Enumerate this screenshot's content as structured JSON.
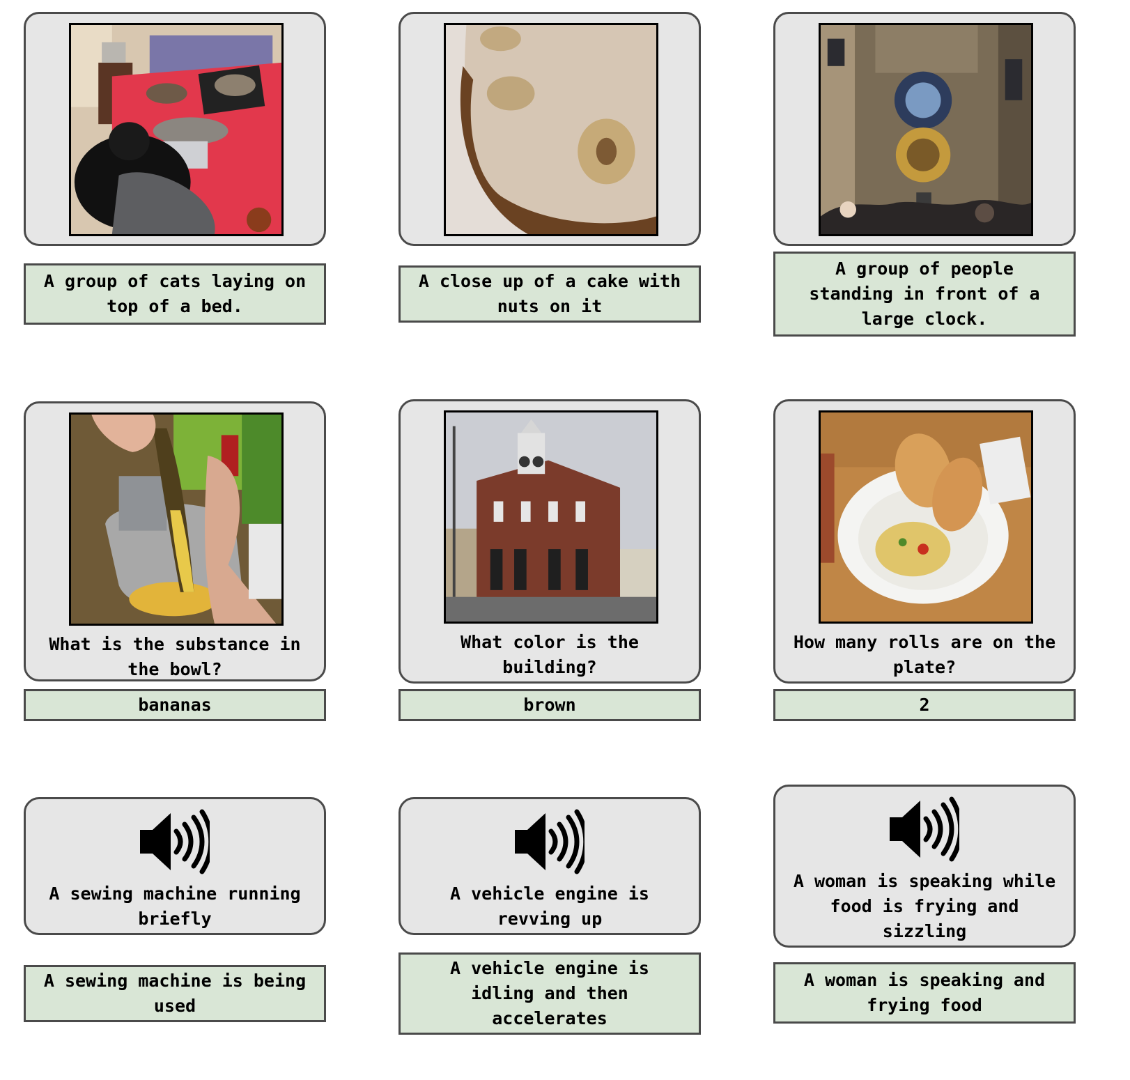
{
  "captioning": [
    {
      "image_icon": "cats-on-bed-photo",
      "caption": "A group of cats laying on\ntop of a bed."
    },
    {
      "image_icon": "walnut-cake-photo",
      "caption": "A close up of a cake with\nnuts on it"
    },
    {
      "image_icon": "astronomical-clock-photo",
      "caption": "A group of people\nstanding in front of a\nlarge clock."
    }
  ],
  "vqa": [
    {
      "image_icon": "banana-peeling-photo",
      "question": "What is the substance in\nthe bowl?",
      "answer": "bananas"
    },
    {
      "image_icon": "brick-town-hall-photo",
      "question": "What color is the\nbuilding?",
      "answer": "brown"
    },
    {
      "image_icon": "sandwich-pasta-plate-photo",
      "question": "How many rolls are on the\nplate?",
      "answer": "2"
    }
  ],
  "audio": [
    {
      "icon": "speaker-icon",
      "reference": "A sewing machine running\nbriefly",
      "generated": "A sewing machine is being\nused"
    },
    {
      "icon": "speaker-icon",
      "reference": "A vehicle engine is\nrevving up",
      "generated": "A vehicle engine is\nidling and then\naccelerates"
    },
    {
      "icon": "speaker-icon",
      "reference": "A woman is speaking while\nfood is frying and\nsizzling",
      "generated": "A woman is speaking and\nfrying food"
    }
  ]
}
